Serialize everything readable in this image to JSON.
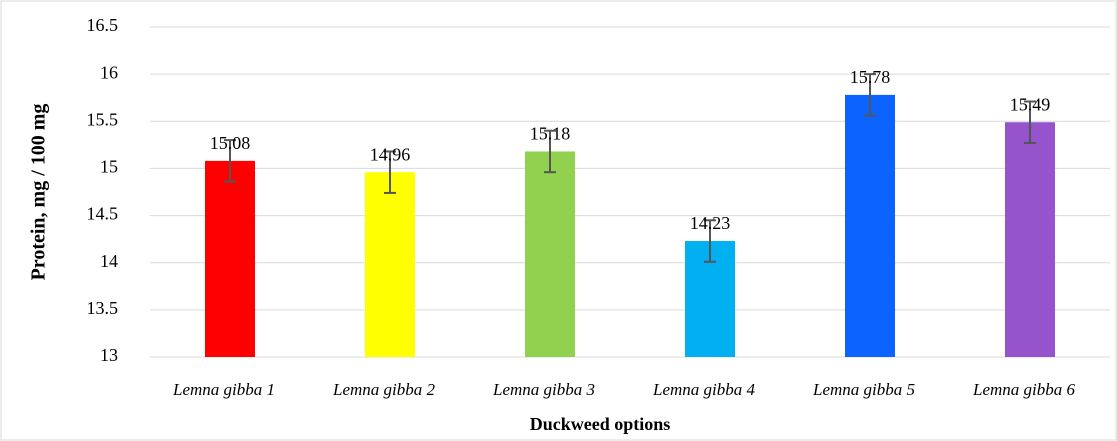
{
  "chart_data": {
    "type": "bar",
    "categories": [
      "Lemna gibba 1",
      "Lemna gibba 2",
      "Lemna gibba 3",
      "Lemna gibba 4",
      "Lemna gibba 5",
      "Lemna gibba 6"
    ],
    "values": [
      15.08,
      14.96,
      15.18,
      14.23,
      15.78,
      15.49
    ],
    "errors": [
      0.22,
      0.22,
      0.22,
      0.22,
      0.22,
      0.22
    ],
    "colors": [
      "#ff0000",
      "#ffff00",
      "#92d050",
      "#00b0f0",
      "#0d63ff",
      "#9553cc"
    ],
    "x_label": "Duckweed options",
    "y_label": "Protein, mg / 100 mg",
    "ylim": [
      13,
      16.5
    ],
    "yticks": [
      13,
      13.5,
      14,
      14.5,
      15,
      15.5,
      16,
      16.5
    ],
    "grid": true
  }
}
